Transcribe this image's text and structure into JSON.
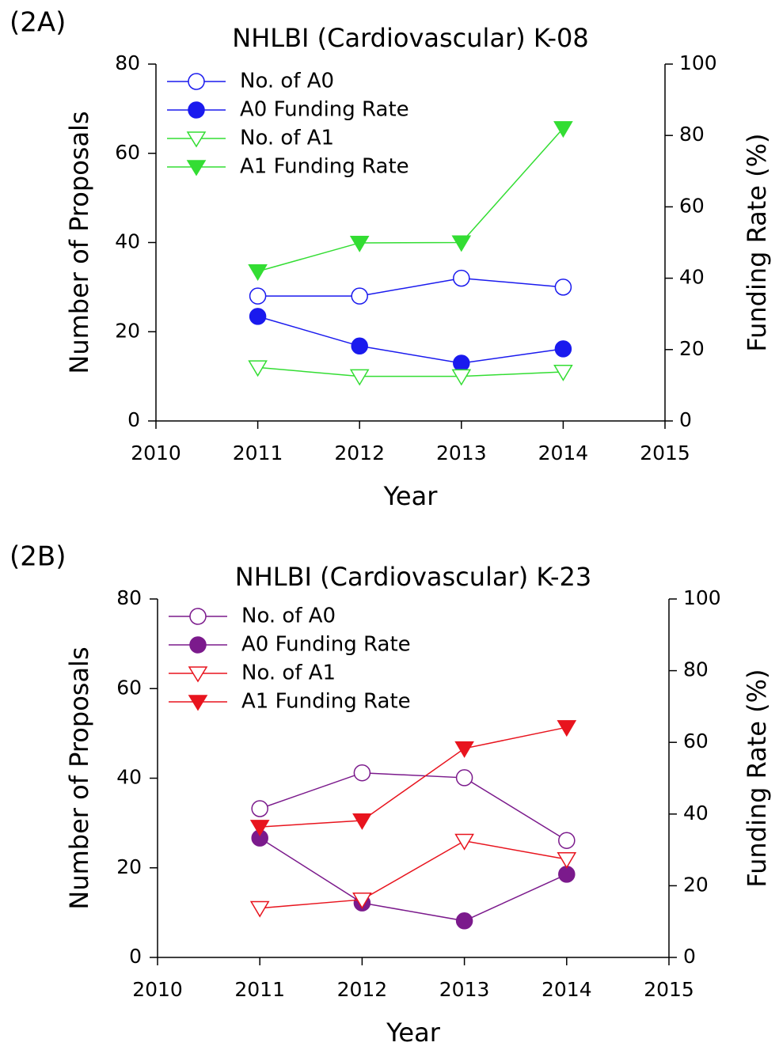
{
  "chart_data": [
    {
      "type": "line",
      "panel_label": "(2A)",
      "title": "NHLBI (Cardiovascular) K-08",
      "x_label": "Year",
      "y_label": "Number of Proposals",
      "y2_label": "Funding Rate (%)",
      "x": [
        2011,
        2012,
        2013,
        2014
      ],
      "xlim": [
        2010,
        2015
      ],
      "xticks": [
        2010,
        2011,
        2012,
        2013,
        2014,
        2015
      ],
      "ylim": [
        0,
        80
      ],
      "yticks": [
        0,
        20,
        40,
        60,
        80
      ],
      "y2lim": [
        0,
        100
      ],
      "y2ticks": [
        0,
        20,
        40,
        60,
        80,
        100
      ],
      "legend": "upper left",
      "series": [
        {
          "name": "No. of A0",
          "color": "#1a1aee",
          "marker": "circle",
          "filled": false,
          "values": [
            28,
            28,
            32,
            30
          ]
        },
        {
          "name": "A0 Funding Rate",
          "color": "#1a1aee",
          "marker": "circle",
          "filled": true,
          "axis": "y2",
          "values": [
            29.3,
            21,
            16.2,
            20.2
          ]
        },
        {
          "name": "No. of A1",
          "color": "#33dd33",
          "marker": "triangle-down",
          "filled": false,
          "values": [
            12,
            10,
            10,
            11
          ]
        },
        {
          "name": "A1 Funding Rate",
          "color": "#33dd33",
          "marker": "triangle-down",
          "filled": true,
          "axis": "y2",
          "values": [
            41.9,
            49.9,
            50,
            82
          ]
        }
      ]
    },
    {
      "type": "line",
      "panel_label": "(2B)",
      "title": "NHLBI (Cardiovascular) K-23",
      "x_label": "Year",
      "y_label": "Number of Proposals",
      "y2_label": "Funding Rate (%)",
      "x": [
        2011,
        2012,
        2013,
        2014
      ],
      "xlim": [
        2010,
        2015
      ],
      "xticks": [
        2010,
        2011,
        2012,
        2013,
        2014,
        2015
      ],
      "ylim": [
        0,
        80
      ],
      "yticks": [
        0,
        20,
        40,
        60,
        80
      ],
      "y2lim": [
        0,
        100
      ],
      "y2ticks": [
        0,
        20,
        40,
        60,
        80,
        100
      ],
      "legend": "upper left",
      "series": [
        {
          "name": "No. of A0",
          "color": "#7b1a8c",
          "marker": "circle",
          "filled": false,
          "values": [
            33.2,
            41.2,
            40.1,
            26.1
          ]
        },
        {
          "name": "A0 Funding Rate",
          "color": "#7b1a8c",
          "marker": "circle",
          "filled": true,
          "axis": "y2",
          "values": [
            33.3,
            15.2,
            10.2,
            23.2
          ]
        },
        {
          "name": "No. of A1",
          "color": "#e8141e",
          "marker": "triangle-down",
          "filled": false,
          "values": [
            11,
            12.9,
            26,
            21.9
          ]
        },
        {
          "name": "A1 Funding Rate",
          "color": "#e8141e",
          "marker": "triangle-down",
          "filled": true,
          "axis": "y2",
          "values": [
            36.4,
            38.2,
            58.3,
            64.2
          ]
        }
      ]
    }
  ]
}
